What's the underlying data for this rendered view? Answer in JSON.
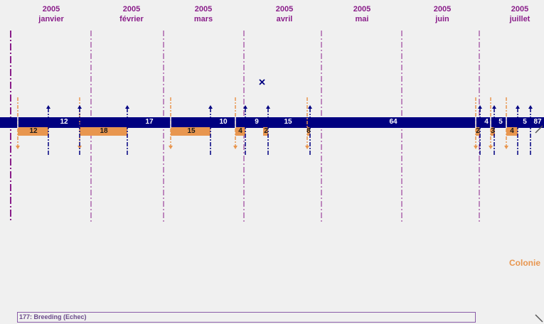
{
  "months": [
    {
      "year": "2005",
      "name": "janvier"
    },
    {
      "year": "2005",
      "name": "février"
    },
    {
      "year": "2005",
      "name": "mars"
    },
    {
      "year": "2005",
      "name": "avril"
    },
    {
      "year": "2005",
      "name": "mai"
    },
    {
      "year": "2005",
      "name": "juin"
    },
    {
      "year": "2005",
      "name": "juillet"
    }
  ],
  "blue_segments": [
    "12",
    "17",
    "10",
    "9",
    "15",
    "64",
    "4",
    "5",
    "5",
    "87"
  ],
  "orange_segments": [
    "12",
    "18",
    "15",
    "4",
    "2",
    "8",
    "2",
    "3",
    "4"
  ],
  "colony_label": "Colonie",
  "breeding_label": "177: Breeding (Echec)",
  "colors": {
    "background": "#f0f0f0",
    "blue": "#000080",
    "orange": "#e8964f",
    "month_text": "#8a1e8a"
  }
}
